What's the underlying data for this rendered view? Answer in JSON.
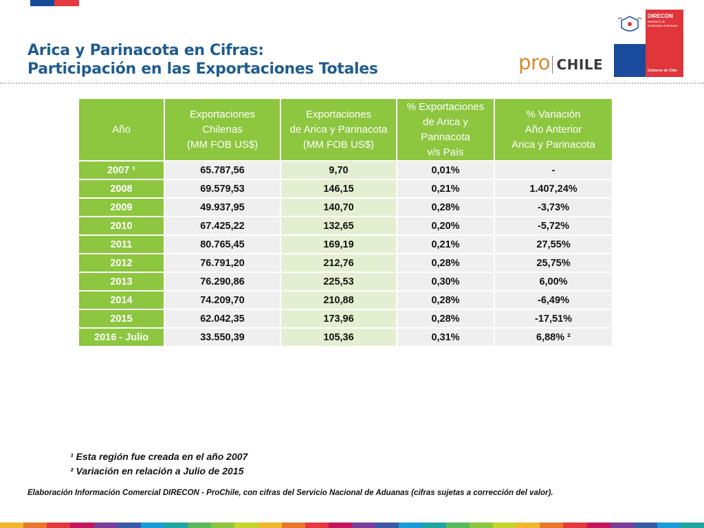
{
  "title": {
    "line1": "Arica y Parinacota en Cifras:",
    "line2": "Participación en las Exportaciones Totales"
  },
  "brand": {
    "pro": "pro",
    "chile": "CHILE",
    "logo": {
      "name": "DIRECON",
      "ministry_line1": "Ministerio de",
      "ministry_line2": "Relaciones Exteriores",
      "government": "Gobierno de Chile"
    },
    "colors": {
      "title_blue": "#1f5c8f",
      "table_green": "#8dc63f",
      "pro_orange": "#d9882a",
      "chile_red": "#e23a3f",
      "chile_blue": "#1a4a9c"
    }
  },
  "table": {
    "headers": {
      "year": "Año",
      "col1": [
        "Exportaciones",
        "Chilenas",
        "(MM FOB US$)"
      ],
      "col2": [
        "Exportaciones",
        "de Arica y Parinacota",
        "(MM FOB US$)"
      ],
      "col3": [
        "% Exportaciones",
        "de Arica y",
        "Parinacota",
        "v/s País"
      ],
      "col4": [
        "% Variación",
        "Año Anterior",
        "Arica y Parinacota"
      ]
    },
    "rows": [
      {
        "year": "2007 ¹",
        "chile": "65.787,56",
        "arica": "9,70",
        "pct": "0,01%",
        "var": "-"
      },
      {
        "year": "2008",
        "chile": "69.579,53",
        "arica": "146,15",
        "pct": "0,21%",
        "var": "1.407,24%"
      },
      {
        "year": "2009",
        "chile": "49.937,95",
        "arica": "140,70",
        "pct": "0,28%",
        "var": "-3,73%"
      },
      {
        "year": "2010",
        "chile": "67.425,22",
        "arica": "132,65",
        "pct": "0,20%",
        "var": "-5,72%"
      },
      {
        "year": "2011",
        "chile": "80.765,45",
        "arica": "169,19",
        "pct": "0,21%",
        "var": "27,55%"
      },
      {
        "year": "2012",
        "chile": "76.791,20",
        "arica": "212,76",
        "pct": "0,28%",
        "var": "25,75%"
      },
      {
        "year": "2013",
        "chile": "76.290,86",
        "arica": "225,53",
        "pct": "0,30%",
        "var": "6,00%"
      },
      {
        "year": "2014",
        "chile": "74.209,70",
        "arica": "210,88",
        "pct": "0,28%",
        "var": "-6,49%"
      },
      {
        "year": "2015",
        "chile": "62.042,35",
        "arica": "173,96",
        "pct": "0,28%",
        "var": "-17,51%"
      },
      {
        "year": "2016 - Julio",
        "chile": "33.550,39",
        "arica": "105,36",
        "pct": "0,31%",
        "var": "6,88% ²"
      }
    ]
  },
  "notes": {
    "note1": "¹ Esta región fue creada en el año 2007",
    "note2": "² Variación en relación a Julio de 2015"
  },
  "footer": "Elaboración Información Comercial DIRECON - ProChile, con cifras del Servicio Nacional de Aduanas (cifras sujetas a corrección del valor).",
  "bottom_strip_colors": [
    "#f1b82d",
    "#e8762d",
    "#e23a3f",
    "#c2185b",
    "#7b3f98",
    "#3b5aa6",
    "#1a9bd7",
    "#21a5a0",
    "#5cb85c",
    "#8dc63f",
    "#c8d530",
    "#f1b82d",
    "#e8762d",
    "#e23a3f",
    "#c2185b",
    "#7b3f98",
    "#3b5aa6",
    "#1a9bd7",
    "#21a5a0",
    "#5cb85c",
    "#8dc63f",
    "#c8d530",
    "#f1b82d",
    "#e8762d",
    "#e23a3f",
    "#c2185b",
    "#7b3f98",
    "#3b5aa6",
    "#1a9bd7",
    "#21a5a0"
  ]
}
